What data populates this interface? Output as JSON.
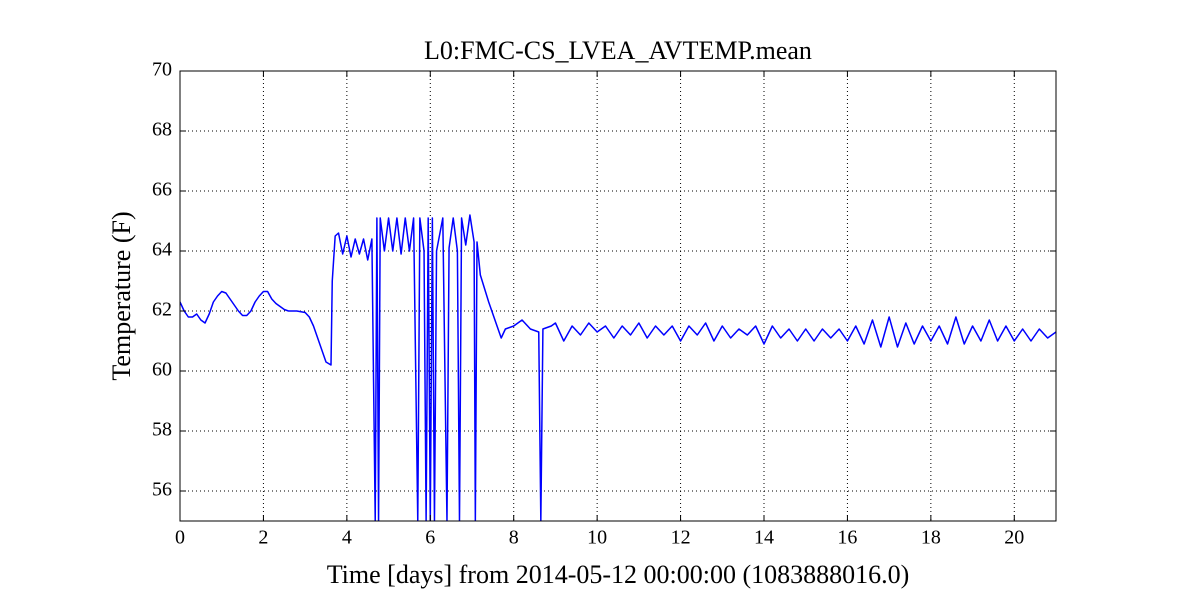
{
  "chart_data": {
    "type": "line",
    "title": "L0:FMC-CS_LVEA_AVTEMP.mean",
    "x_label": "Time [days] from 2014-05-12 00:00:00 (1083888016.0)",
    "y_label": "Temperature (F)",
    "xlim": [
      0,
      21
    ],
    "xticks": [
      0,
      2,
      4,
      6,
      8,
      10,
      12,
      14,
      16,
      18,
      20
    ],
    "ylim": [
      55,
      70
    ],
    "yticks": [
      56,
      58,
      60,
      62,
      64,
      66,
      68,
      70
    ],
    "grid": true,
    "series": [
      {
        "color": "#0000ff",
        "x": [
          0,
          0.1,
          0.2,
          0.3,
          0.4,
          0.5,
          0.6,
          0.7,
          0.8,
          0.9,
          1.0,
          1.1,
          1.2,
          1.3,
          1.4,
          1.5,
          1.6,
          1.7,
          1.8,
          1.9,
          2.0,
          2.1,
          2.2,
          2.3,
          2.4,
          2.5,
          2.6,
          2.8,
          3.0,
          3.1,
          3.2,
          3.3,
          3.4,
          3.5,
          3.62,
          3.65,
          3.72,
          3.8,
          3.9,
          4.0,
          4.1,
          4.2,
          4.3,
          4.4,
          4.5,
          4.6,
          4.68,
          4.72,
          4.76,
          4.8,
          4.9,
          5.0,
          5.1,
          5.2,
          5.3,
          5.4,
          5.5,
          5.6,
          5.7,
          5.75,
          5.85,
          5.9,
          5.95,
          6.0,
          6.05,
          6.1,
          6.15,
          6.3,
          6.4,
          6.45,
          6.55,
          6.65,
          6.7,
          6.75,
          6.85,
          6.95,
          7.05,
          7.08,
          7.12,
          7.2,
          7.4,
          7.6,
          7.7,
          7.8,
          8.0,
          8.2,
          8.4,
          8.6,
          8.65,
          8.7,
          8.9,
          9.0,
          9.2,
          9.4,
          9.6,
          9.8,
          10.0,
          10.2,
          10.4,
          10.6,
          10.8,
          11.0,
          11.2,
          11.4,
          11.6,
          11.8,
          12.0,
          12.2,
          12.4,
          12.6,
          12.8,
          13.0,
          13.2,
          13.4,
          13.6,
          13.8,
          14.0,
          14.2,
          14.4,
          14.6,
          14.8,
          15.0,
          15.2,
          15.4,
          15.6,
          15.8,
          16.0,
          16.2,
          16.4,
          16.6,
          16.8,
          17.0,
          17.2,
          17.4,
          17.6,
          17.8,
          18.0,
          18.2,
          18.4,
          18.6,
          18.8,
          19.0,
          19.2,
          19.4,
          19.6,
          19.8,
          20.0,
          20.2,
          20.4,
          20.6,
          20.8,
          21.0
        ],
        "values": [
          62.3,
          62.0,
          61.8,
          61.8,
          61.9,
          61.7,
          61.6,
          61.9,
          62.3,
          62.5,
          62.65,
          62.6,
          62.4,
          62.2,
          62.0,
          61.85,
          61.85,
          62.0,
          62.3,
          62.5,
          62.65,
          62.65,
          62.4,
          62.25,
          62.15,
          62.05,
          62.0,
          62.0,
          61.95,
          61.8,
          61.5,
          61.1,
          60.7,
          60.3,
          60.2,
          63.0,
          64.5,
          64.6,
          63.9,
          64.5,
          63.8,
          64.4,
          63.9,
          64.4,
          63.7,
          64.4,
          55,
          65.1,
          55,
          65.1,
          64.0,
          65.1,
          64.0,
          65.1,
          63.9,
          65.1,
          64.0,
          65.1,
          55,
          65.1,
          64.0,
          55,
          65.1,
          55,
          65.1,
          55,
          64.0,
          65.1,
          55,
          64.1,
          65.1,
          64.0,
          55,
          65.1,
          64.2,
          65.2,
          64.3,
          55,
          64.3,
          63.2,
          62.3,
          61.5,
          61.1,
          61.4,
          61.5,
          61.7,
          61.4,
          61.3,
          55,
          61.4,
          61.5,
          61.6,
          61.0,
          61.5,
          61.2,
          61.6,
          61.3,
          61.5,
          61.1,
          61.5,
          61.2,
          61.6,
          61.1,
          61.5,
          61.2,
          61.5,
          61.0,
          61.5,
          61.2,
          61.6,
          61.0,
          61.5,
          61.1,
          61.4,
          61.2,
          61.5,
          60.9,
          61.5,
          61.1,
          61.4,
          61.0,
          61.4,
          61.0,
          61.4,
          61.1,
          61.4,
          61.0,
          61.5,
          60.9,
          61.7,
          60.8,
          61.8,
          60.8,
          61.6,
          60.9,
          61.5,
          61.0,
          61.5,
          60.9,
          61.8,
          60.9,
          61.5,
          61.0,
          61.7,
          61.0,
          61.5,
          61.0,
          61.4,
          61.0,
          61.4,
          61.1,
          61.3
        ]
      }
    ]
  }
}
